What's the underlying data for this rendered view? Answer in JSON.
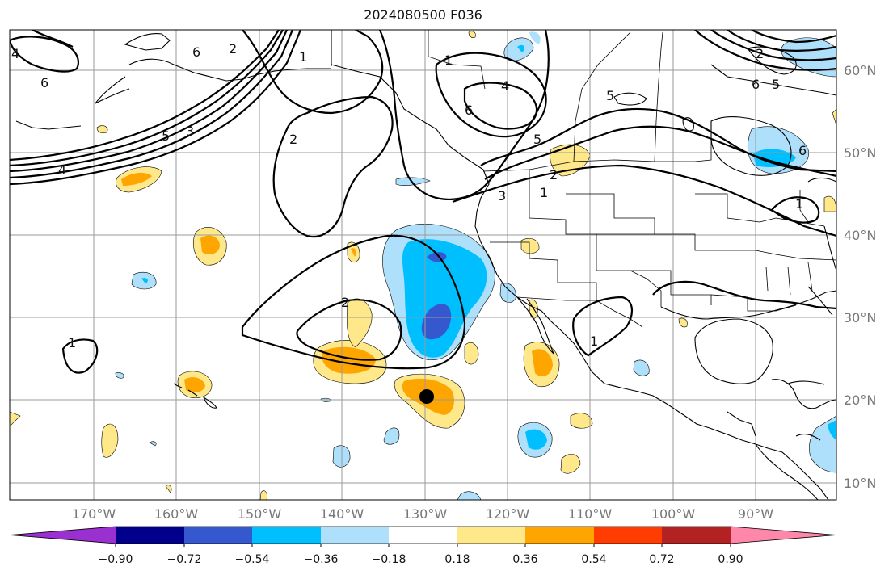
{
  "title": "2024080500 F036",
  "lat_labels": [
    "60°N",
    "50°N",
    "40°N",
    "30°N",
    "20°N",
    "10°N"
  ],
  "lon_labels": [
    "170°W",
    "160°W",
    "150°W",
    "140°W",
    "130°W",
    "120°W",
    "110°W",
    "100°W",
    "90°W"
  ],
  "colorbar": {
    "labels": [
      "−0.90",
      "−0.72",
      "−0.54",
      "−0.36",
      "−0.18",
      "0.18",
      "0.36",
      "0.54",
      "0.72",
      "0.90"
    ],
    "colors": [
      "#9b30d0",
      "#00008b",
      "#3558cf",
      "#00bfff",
      "#aee0fb",
      "#ffffff",
      "#ffe88a",
      "#ffa500",
      "#ff3d00",
      "#b22222",
      "#ff88aa"
    ]
  },
  "contour_labels": [
    "4",
    "5",
    "6",
    "2",
    "1",
    "2",
    "3",
    "4",
    "1",
    "4",
    "6",
    "5",
    "5",
    "6",
    "2",
    "3",
    "1",
    "2",
    "2",
    "1",
    "1",
    "1",
    "6",
    "5",
    "6"
  ]
}
